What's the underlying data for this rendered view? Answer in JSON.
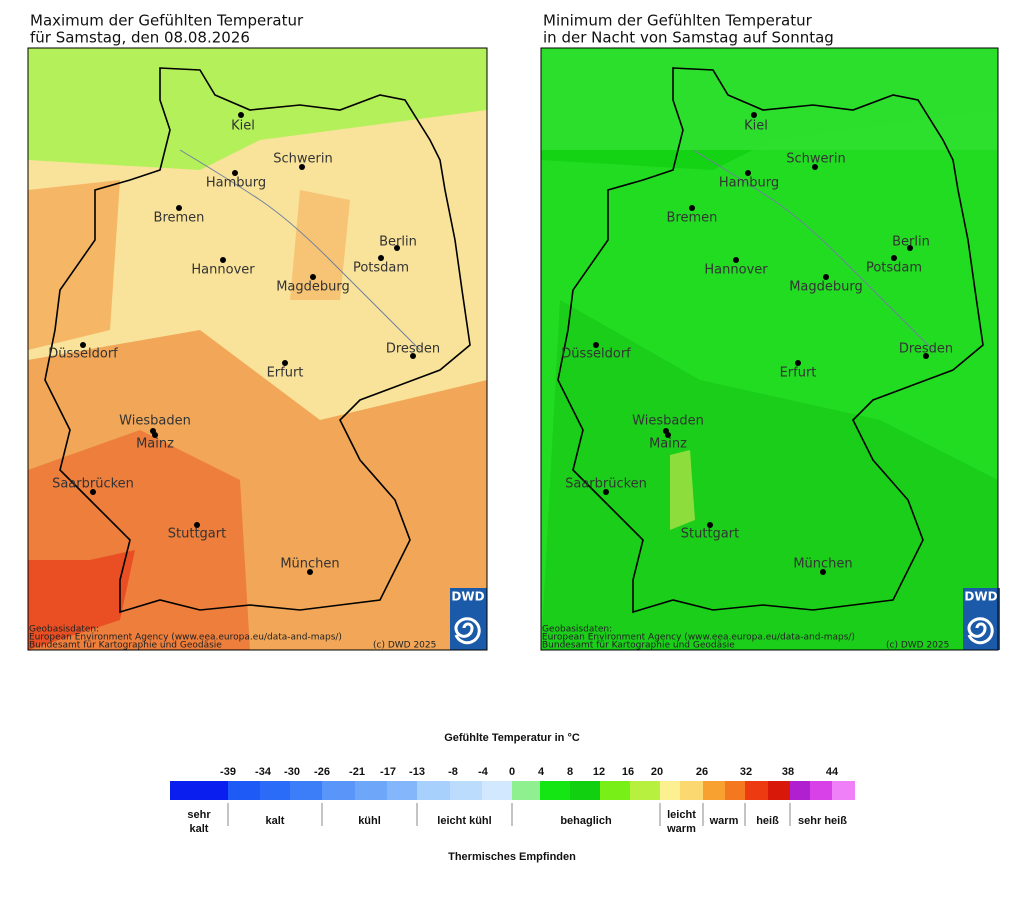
{
  "maps": [
    {
      "title": [
        "Maximum der Gefühlten Temperatur",
        "für Samstag, den 08.08.2026"
      ]
    },
    {
      "title": [
        "Minimum der Gefühlten Temperatur",
        "in der Nacht von Samstag auf Sonntag"
      ]
    }
  ],
  "cities": [
    "Kiel",
    "Schwerin",
    "Hamburg",
    "Bremen",
    "Berlin",
    "Potsdam",
    "Hannover",
    "Magdeburg",
    "Düsseldorf",
    "Dresden",
    "Erfurt",
    "Wiesbaden",
    "Mainz",
    "Saarbrücken",
    "Stuttgart",
    "München"
  ],
  "attribution": [
    "Geobasisdaten:",
    "European Environment Agency (www.eea.europa.eu/data-and-maps/)",
    "Bundesamt für Kartographie und Geodäsie"
  ],
  "copyright": "(c) DWD 2025",
  "logo": "DWD",
  "legend": {
    "title": "Gefühlte Temperatur in °C",
    "ticks": [
      -39,
      -34,
      -30,
      -26,
      -21,
      -17,
      -13,
      -8,
      -4,
      0,
      4,
      8,
      12,
      16,
      20,
      26,
      32,
      38,
      44
    ],
    "colors": [
      "#0a1ef0",
      "#1e5af5",
      "#2a6cf7",
      "#3c7ef8",
      "#5a96f9",
      "#6ea6fa",
      "#84b6fb",
      "#a8d0fc",
      "#bcdcfd",
      "#d2e8fe",
      "#8ef08e",
      "#14e614",
      "#10d010",
      "#78f018",
      "#b8f040",
      "#fcf090",
      "#fcd870",
      "#f8a030",
      "#f47820",
      "#ee3a10",
      "#d81808",
      "#b020d0",
      "#d840e8",
      "#f080f8"
    ],
    "categories": [
      "sehr kalt",
      "kalt",
      "kühl",
      "leicht kühl",
      "behaglich",
      "leicht warm",
      "warm",
      "heiß",
      "sehr heiß"
    ],
    "footer": "Thermisches Empfinden"
  }
}
